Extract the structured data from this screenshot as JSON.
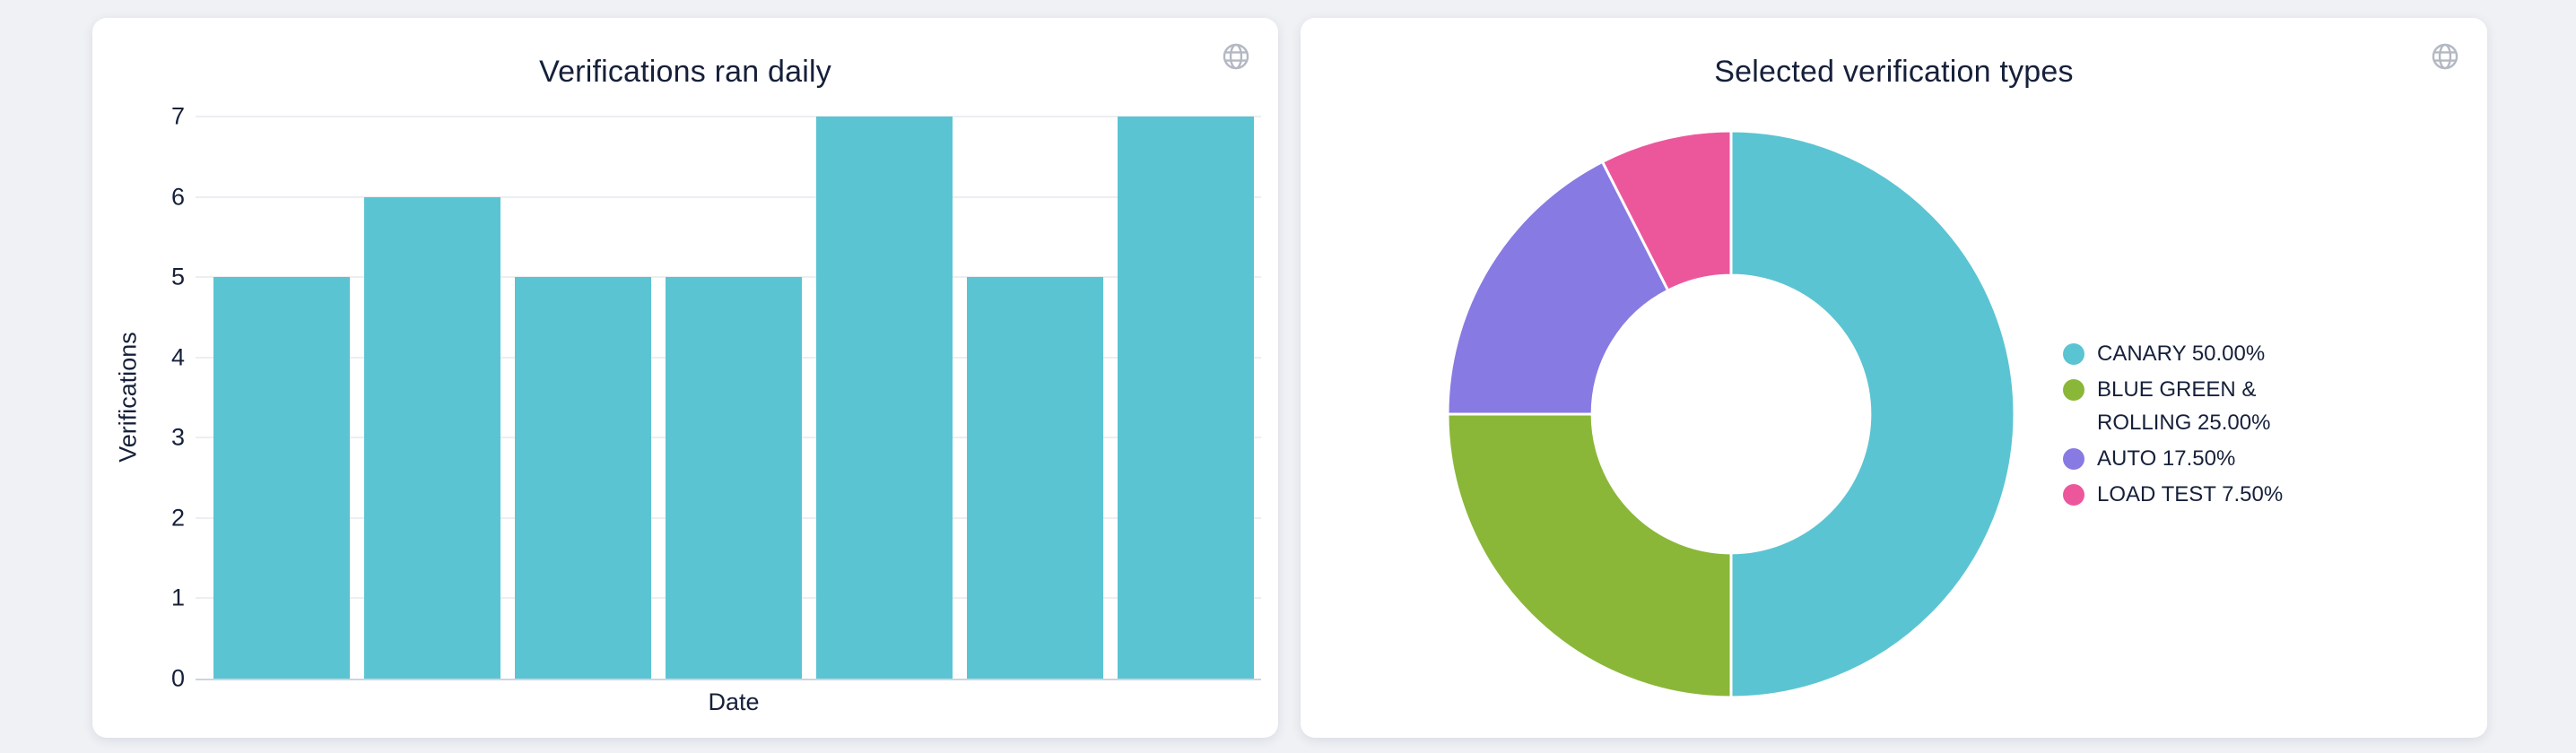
{
  "page": {
    "background_color": "#eff1f5"
  },
  "cards": [
    {
      "title": "Verifications ran daily",
      "toolbox_icon": "globe-icon"
    },
    {
      "title": "Selected verification types",
      "toolbox_icon": "globe-icon"
    }
  ],
  "colors": {
    "text": "#16203a",
    "grid_line": "#eceef3",
    "axis_line": "#ccd3e2",
    "icon_gray": "#b3b8c3",
    "card_bg": "#ffffff",
    "page_bg": "#eff1f5"
  },
  "chart_data": [
    {
      "type": "bar",
      "title": "Verifications ran daily",
      "xlabel": "Date",
      "ylabel": "Verifications",
      "categories": [
        "",
        "",
        "",
        "",
        "",
        "",
        ""
      ],
      "values": [
        5,
        6,
        5,
        5,
        7,
        5,
        7
      ],
      "ylim": [
        0,
        7
      ],
      "yticks": [
        0,
        1,
        2,
        3,
        4,
        5,
        6,
        7
      ],
      "bar_color": "#5bc4d2",
      "grid": true,
      "x_tick_labels_visible": false,
      "legend_position": "none"
    },
    {
      "type": "pie",
      "subtype": "donut",
      "title": "Selected verification types",
      "legend_position": "right",
      "start_angle": "top",
      "direction": "clockwise",
      "inner_radius_ratio": 0.49,
      "slices": [
        {
          "label": "CANARY",
          "value_pct": 50.0,
          "legend_label": "CANARY 50.00%",
          "color": "#5bc4d2"
        },
        {
          "label": "BLUE GREEN & ROLLING",
          "value_pct": 25.0,
          "legend_label": "BLUE GREEN & ROLLING 25.00%",
          "color": "#8ab738"
        },
        {
          "label": "AUTO",
          "value_pct": 17.5,
          "legend_label": "AUTO 17.50%",
          "color": "#887ae3"
        },
        {
          "label": "LOAD TEST",
          "value_pct": 7.5,
          "legend_label": "LOAD TEST 7.50%",
          "color": "#ec579c"
        }
      ]
    }
  ]
}
